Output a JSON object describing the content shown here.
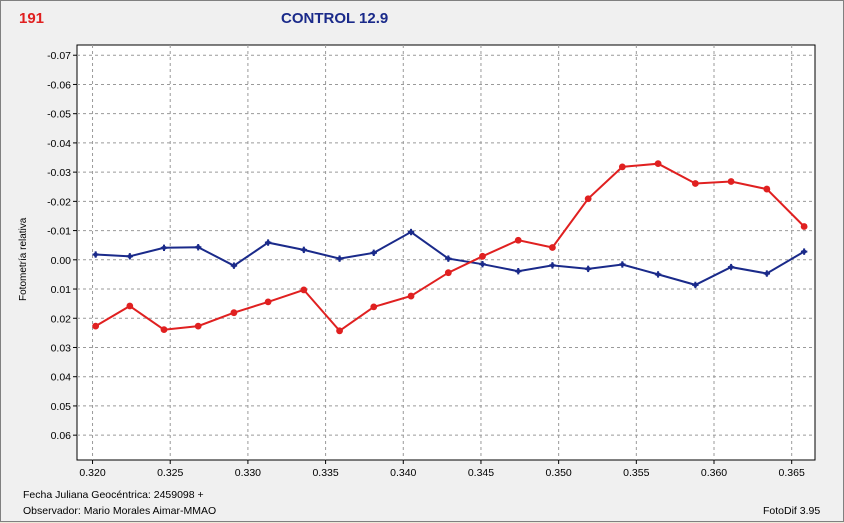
{
  "header": {
    "id": "191",
    "title": "CONTROL 12.9"
  },
  "footer": {
    "date_line": "Fecha Juliana Geocéntrica: 2459098 +",
    "observer_line": "Observador: Mario Morales Aimar-MMAO",
    "version": "FotoDif 3.95"
  },
  "chart_data": {
    "type": "line",
    "title": "CONTROL 12.9",
    "ylabel": "Fotometría relativa",
    "xlabel": "",
    "xlim": [
      0.319,
      0.3665
    ],
    "ylim": [
      -0.0735,
      0.0685
    ],
    "y_inverted": true,
    "grid": true,
    "x_ticks": [
      0.32,
      0.325,
      0.33,
      0.335,
      0.34,
      0.345,
      0.35,
      0.355,
      0.36,
      0.365
    ],
    "x_tick_labels": [
      "0.320",
      "0.325",
      "0.330",
      "0.335",
      "0.340",
      "0.345",
      "0.350",
      "0.355",
      "0.360",
      "0.365"
    ],
    "y_ticks": [
      -0.07,
      -0.06,
      -0.05,
      -0.04,
      -0.03,
      -0.02,
      -0.01,
      0.0,
      0.01,
      0.02,
      0.03,
      0.04,
      0.05,
      0.06
    ],
    "y_tick_labels": [
      "-0.07",
      "-0.06",
      "-0.05",
      "-0.04",
      "-0.03",
      "-0.02",
      "-0.01",
      "0.00",
      "0.01",
      "0.02",
      "0.03",
      "0.04",
      "0.05",
      "0.06"
    ],
    "series": [
      {
        "color": "#1a2a8a",
        "marker": "star",
        "x": [
          0.3202,
          0.3224,
          0.3246,
          0.3268,
          0.3291,
          0.3313,
          0.3336,
          0.3359,
          0.3381,
          0.3405,
          0.3429,
          0.3451,
          0.3474,
          0.3496,
          0.3519,
          0.3541,
          0.3564,
          0.3588,
          0.3611,
          0.3634,
          0.3658
        ],
        "y": [
          -0.0018,
          -0.0012,
          -0.0041,
          -0.0043,
          0.002,
          -0.0059,
          -0.0034,
          -0.0004,
          -0.0024,
          -0.0095,
          -0.0004,
          0.0015,
          0.0039,
          0.0019,
          0.0031,
          0.0016,
          0.005,
          0.0086,
          0.0025,
          0.0047,
          -0.0028
        ]
      },
      {
        "color": "#e02020",
        "marker": "dot",
        "x": [
          0.3202,
          0.3224,
          0.3246,
          0.3268,
          0.3291,
          0.3313,
          0.3336,
          0.3359,
          0.3381,
          0.3405,
          0.3429,
          0.3451,
          0.3474,
          0.3496,
          0.3519,
          0.3541,
          0.3564,
          0.3588,
          0.3611,
          0.3634,
          0.3658
        ],
        "y": [
          0.0227,
          0.0158,
          0.0239,
          0.0227,
          0.0181,
          0.0144,
          0.0103,
          0.0243,
          0.0161,
          0.0124,
          0.0044,
          -0.0012,
          -0.0067,
          -0.0042,
          -0.0209,
          -0.0318,
          -0.0329,
          -0.0261,
          -0.0268,
          -0.0242,
          -0.0114
        ]
      }
    ]
  }
}
